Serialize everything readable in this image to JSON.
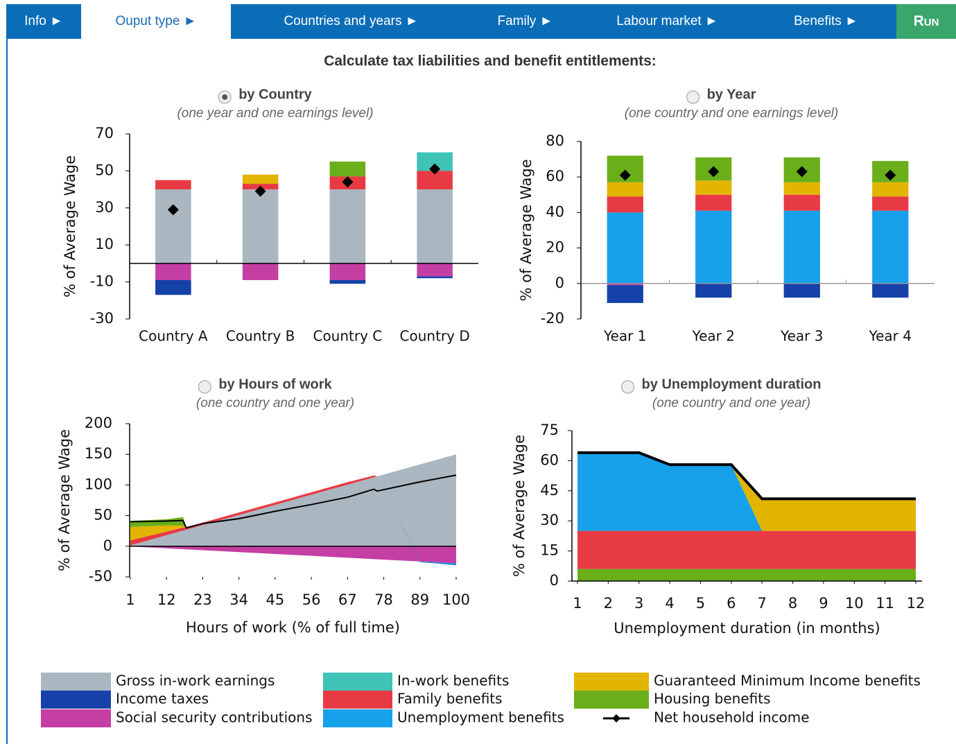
{
  "nav": [
    "Info ►",
    "Ouput type ►",
    "Countries and years ►",
    "Family ►",
    "Labour market ►",
    "Benefits ►",
    "Run"
  ],
  "active_tab": 1,
  "heading": "Calculate tax liabilities and benefit entitlements:",
  "chart_data": [
    {
      "type": "bar",
      "title": "by Country",
      "subtitle": "(one year and one earnings level)",
      "selected": true,
      "y_label": "% of Average Wage",
      "categories": [
        "Country A",
        "Country B",
        "Country C",
        "Country D"
      ],
      "ylim": [
        -30,
        70
      ],
      "yticks": [
        -30,
        -10,
        10,
        30,
        50,
        70
      ],
      "series": [
        {
          "name": "Gross in-work earnings",
          "color": "#aab7c1",
          "values": [
            40,
            40,
            40,
            40
          ]
        },
        {
          "name": "Family benefits",
          "color": "#e83a44",
          "values": [
            5,
            3,
            7,
            10
          ]
        },
        {
          "name": "Guaranteed Minimum Income benefits",
          "color": "#e2b500",
          "values": [
            0,
            5,
            0,
            0
          ]
        },
        {
          "name": "Housing benefits",
          "color": "#6aaf1a",
          "values": [
            0,
            0,
            8,
            0
          ]
        },
        {
          "name": "In-work benefits",
          "color": "#3ec3b6",
          "values": [
            0,
            0,
            0,
            10
          ]
        },
        {
          "name": "Social security contributions",
          "color": "#c43ea3",
          "values": [
            -9,
            -9,
            -9,
            -7
          ]
        },
        {
          "name": "Income taxes",
          "color": "#1541a8",
          "values": [
            -8,
            0,
            -2,
            -1
          ]
        },
        {
          "name": "Net household income",
          "color": "#000000",
          "mark": "diamond",
          "values": [
            29,
            39,
            44,
            51
          ]
        }
      ]
    },
    {
      "type": "bar",
      "title": "by Year",
      "subtitle": "(one country and one earnings level)",
      "selected": false,
      "y_label": "% of Average Wage",
      "categories": [
        "Year 1",
        "Year 2",
        "Year 3",
        "Year 4"
      ],
      "ylim": [
        -20,
        80
      ],
      "yticks": [
        -20,
        0,
        20,
        40,
        60,
        80
      ],
      "series": [
        {
          "name": "Unemployment benefits",
          "color": "#17a1ea",
          "values": [
            40,
            41,
            41,
            41
          ]
        },
        {
          "name": "Family benefits",
          "color": "#e83a44",
          "values": [
            9,
            9,
            9,
            8
          ]
        },
        {
          "name": "Guaranteed Minimum Income benefits",
          "color": "#e2b500",
          "values": [
            8,
            8,
            7,
            8
          ]
        },
        {
          "name": "Housing benefits",
          "color": "#6aaf1a",
          "values": [
            15,
            13,
            14,
            12
          ]
        },
        {
          "name": "Social security contributions",
          "color": "#c43ea3",
          "values": [
            -1,
            0,
            0,
            0
          ]
        },
        {
          "name": "Income taxes",
          "color": "#1541a8",
          "values": [
            -10,
            -8,
            -8,
            -8
          ]
        },
        {
          "name": "Net household income",
          "color": "#000000",
          "mark": "diamond",
          "values": [
            61,
            63,
            63,
            61
          ]
        }
      ]
    },
    {
      "type": "area",
      "title": "by Hours of work",
      "subtitle": "(one country and one year)",
      "selected": false,
      "y_label": "% of Average Wage",
      "x_label": "Hours of work (% of full time)",
      "x": [
        1,
        12,
        17,
        18,
        23,
        34,
        45,
        56,
        67,
        75,
        76,
        89,
        100
      ],
      "xlim": [
        1,
        100
      ],
      "xticks": [
        1,
        12,
        23,
        34,
        45,
        56,
        67,
        78,
        89,
        100
      ],
      "ylim": [
        -50,
        200
      ],
      "yticks": [
        -50,
        0,
        50,
        100,
        150,
        200
      ],
      "series": [
        {
          "name": "Gross in-work earnings",
          "color": "#aab7c1",
          "values": [
            1.5,
            18,
            25.5,
            27,
            34.5,
            51,
            67.5,
            84,
            100.5,
            112.5,
            114,
            133.5,
            150
          ]
        },
        {
          "name": "Family benefits",
          "color": "#e83a44",
          "values": [
            8,
            6,
            5,
            4,
            4,
            4,
            4,
            4,
            4,
            3,
            0,
            0,
            0
          ]
        },
        {
          "name": "Guaranteed Minimum Income benefits",
          "color": "#e2b500",
          "values": [
            22,
            10,
            3,
            0,
            0,
            0,
            0,
            0,
            0,
            0,
            0,
            0,
            0
          ]
        },
        {
          "name": "Housing benefits",
          "color": "#6aaf1a",
          "values": [
            10,
            10,
            14,
            0,
            0,
            0,
            0,
            0,
            0,
            0,
            0,
            0,
            0
          ]
        },
        {
          "name": "Social security contributions",
          "color": "#c43ea3",
          "values": [
            -0.3,
            -3.4,
            -4.8,
            -5,
            -6.4,
            -9.5,
            -12.6,
            -15.7,
            -18.8,
            -21,
            -21.3,
            -24.9,
            -28
          ]
        },
        {
          "name": "Income taxes",
          "color": "#1a8fe0",
          "values": [
            0,
            0,
            0,
            0,
            0,
            0,
            0,
            0,
            0,
            0,
            0,
            -1,
            -3
          ]
        },
        {
          "name": "Net household income",
          "color": "#000000",
          "mark": "line",
          "values": [
            40,
            41,
            42,
            30,
            37,
            45,
            57,
            68,
            80,
            93,
            90,
            105,
            116
          ]
        }
      ]
    },
    {
      "type": "area",
      "title": "by Unemployment duration",
      "subtitle": "(one country and one year)",
      "selected": false,
      "y_label": "% of Average Wage",
      "x_label": "Unemployment duration (in months)",
      "x": [
        1,
        2,
        3,
        4,
        5,
        6,
        7,
        8,
        9,
        10,
        11,
        12
      ],
      "xlim": [
        1,
        12
      ],
      "xticks": [
        1,
        2,
        3,
        4,
        5,
        6,
        7,
        8,
        9,
        10,
        11,
        12
      ],
      "ylim": [
        0,
        75
      ],
      "yticks": [
        0,
        15,
        30,
        45,
        60,
        75
      ],
      "series": [
        {
          "name": "Housing benefits",
          "color": "#6aaf1a",
          "values": [
            6,
            6,
            6,
            6,
            6,
            6,
            6,
            6,
            6,
            6,
            6,
            6
          ]
        },
        {
          "name": "Family benefits",
          "color": "#e83a44",
          "values": [
            19,
            19,
            19,
            19,
            19,
            19,
            19,
            19,
            19,
            19,
            19,
            19
          ]
        },
        {
          "name": "Unemployment benefits",
          "color": "#17a1ea",
          "values": [
            39,
            39,
            39,
            33,
            33,
            33,
            0,
            0,
            0,
            0,
            0,
            0
          ]
        },
        {
          "name": "Guaranteed Minimum Income benefits",
          "color": "#e2b500",
          "values": [
            0,
            0,
            0,
            0,
            0,
            0,
            16,
            16,
            16,
            16,
            16,
            16
          ]
        },
        {
          "name": "Net household income",
          "color": "#000000",
          "mark": "line",
          "values": [
            64,
            64,
            64,
            58,
            58,
            58,
            41,
            41,
            41,
            41,
            41,
            41
          ]
        }
      ]
    }
  ],
  "legend": [
    {
      "name": "Gross in-work earnings",
      "color": "#aab7c1"
    },
    {
      "name": "Income taxes",
      "color": "#1541a8"
    },
    {
      "name": "Social security contributions",
      "color": "#c43ea3"
    },
    {
      "name": "In-work benefits",
      "color": "#3ec3b6"
    },
    {
      "name": "Family benefits",
      "color": "#e83a44"
    },
    {
      "name": "Unemployment benefits",
      "color": "#17a1ea"
    },
    {
      "name": "Guaranteed Minimum Income benefits",
      "color": "#e2b500"
    },
    {
      "name": "Housing benefits",
      "color": "#6aaf1a"
    },
    {
      "name": "Net household income",
      "color": "#000000",
      "mark": "line"
    }
  ]
}
